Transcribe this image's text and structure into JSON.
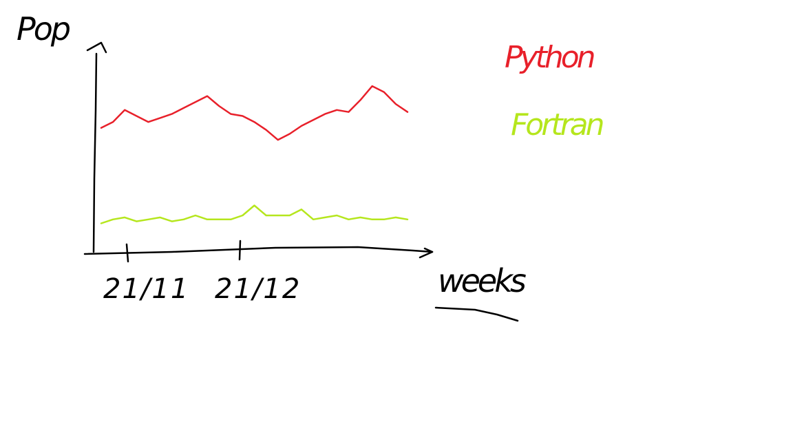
{
  "chart_data": {
    "type": "line",
    "title": "",
    "ylabel": "Pop",
    "xlabel": "weeks",
    "tick_labels": [
      "21/11",
      "21/12"
    ],
    "grid": false,
    "legend_position": "top-right",
    "x": [
      0,
      1,
      2,
      3,
      4,
      5,
      6,
      7,
      8,
      9,
      10,
      11,
      12,
      13,
      14,
      15,
      16,
      17,
      18,
      19,
      20,
      21,
      22,
      23,
      24,
      25,
      26
    ],
    "series": [
      {
        "name": "Python",
        "color": "#e8202a",
        "values": [
          6.2,
          6.5,
          7.1,
          6.8,
          6.5,
          6.7,
          6.9,
          7.2,
          7.5,
          7.8,
          7.3,
          6.9,
          6.8,
          6.5,
          6.1,
          5.6,
          5.9,
          6.3,
          6.6,
          6.9,
          7.1,
          7.0,
          7.6,
          8.3,
          8.0,
          7.4,
          7.0
        ]
      },
      {
        "name": "Fortran",
        "color": "#b5e61d",
        "values": [
          1.4,
          1.6,
          1.7,
          1.5,
          1.6,
          1.7,
          1.5,
          1.6,
          1.8,
          1.6,
          1.6,
          1.6,
          1.8,
          2.3,
          1.8,
          1.8,
          1.8,
          2.1,
          1.6,
          1.7,
          1.8,
          1.6,
          1.7,
          1.6,
          1.6,
          1.7,
          1.6
        ]
      }
    ]
  }
}
